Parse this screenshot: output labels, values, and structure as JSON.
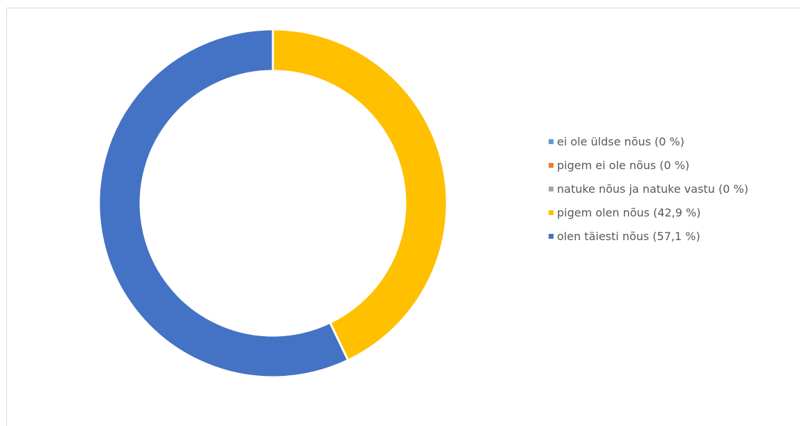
{
  "chart_data": {
    "type": "pie",
    "title": "",
    "title_color": "#70ad47",
    "donut": true,
    "legend_position": "right",
    "slices": [
      {
        "label": "ei ole üldse nõus (0 %)",
        "value": 0,
        "color": "#5b9bd5"
      },
      {
        "label": "pigem ei ole nõus (0 %)",
        "value": 0,
        "color": "#ed7d31"
      },
      {
        "label": "natuke nõus ja natuke vastu (0 %)",
        "value": 0,
        "color": "#a5a5a5"
      },
      {
        "label": "pigem olen nõus (42,9 %)",
        "value": 42.9,
        "color": "#ffc000"
      },
      {
        "label": "olen täiesti nõus (57,1 %)",
        "value": 57.1,
        "color": "#4472c4"
      }
    ]
  }
}
